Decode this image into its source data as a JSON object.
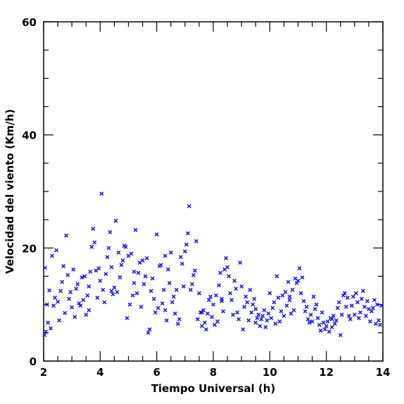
{
  "chart_data": {
    "type": "scatter",
    "title": "",
    "xlabel": "Tiempo Universal (h)",
    "ylabel": "Velocidad del viento (Km/h)",
    "xlim": [
      2,
      14
    ],
    "ylim": [
      0,
      60
    ],
    "x_ticks": [
      2,
      4,
      6,
      8,
      10,
      12,
      14
    ],
    "y_ticks": [
      0,
      20,
      40,
      60
    ],
    "grid": false,
    "legend": "none",
    "marker": "x",
    "color": "#1a1ae6",
    "series": [
      {
        "points": [
          [
            2.03,
            4.6
          ],
          [
            2.05,
            16.5
          ],
          [
            2.08,
            5.2
          ],
          [
            2.12,
            10.0
          ],
          [
            2.15,
            6.8
          ],
          [
            2.2,
            12.5
          ],
          [
            2.25,
            5.8
          ],
          [
            2.3,
            18.6
          ],
          [
            2.35,
            9.8
          ],
          [
            2.4,
            11.2
          ],
          [
            2.45,
            19.6
          ],
          [
            2.5,
            10.5
          ],
          [
            2.55,
            7.2
          ],
          [
            2.6,
            12.4
          ],
          [
            2.65,
            14.0
          ],
          [
            2.7,
            16.8
          ],
          [
            2.75,
            8.5
          ],
          [
            2.8,
            22.2
          ],
          [
            2.85,
            15.2
          ],
          [
            2.9,
            11.0
          ],
          [
            2.95,
            12.2
          ],
          [
            3.0,
            9.5
          ],
          [
            3.05,
            16.2
          ],
          [
            3.1,
            7.8
          ],
          [
            3.15,
            12.8
          ],
          [
            3.2,
            13.6
          ],
          [
            3.25,
            10.2
          ],
          [
            3.3,
            9.8
          ],
          [
            3.35,
            14.8
          ],
          [
            3.4,
            10.8
          ],
          [
            3.45,
            15.0
          ],
          [
            3.5,
            8.2
          ],
          [
            3.55,
            11.6
          ],
          [
            3.6,
            13.2
          ],
          [
            3.65,
            15.8
          ],
          [
            3.7,
            20.2
          ],
          [
            3.75,
            23.4
          ],
          [
            3.8,
            21.0
          ],
          [
            3.85,
            16.0
          ],
          [
            3.9,
            11.2
          ],
          [
            3.95,
            16.4
          ],
          [
            4.0,
            14.2
          ],
          [
            4.05,
            29.6
          ],
          [
            4.1,
            12.6
          ],
          [
            4.15,
            10.4
          ],
          [
            4.2,
            15.4
          ],
          [
            4.25,
            18.4
          ],
          [
            4.3,
            20.0
          ],
          [
            4.35,
            22.8
          ],
          [
            4.4,
            16.6
          ],
          [
            4.45,
            11.8
          ],
          [
            4.5,
            13.0
          ],
          [
            4.55,
            24.8
          ],
          [
            4.6,
            12.2
          ],
          [
            4.65,
            19.2
          ],
          [
            4.7,
            14.8
          ],
          [
            4.75,
            17.0
          ],
          [
            4.8,
            17.8
          ],
          [
            4.85,
            20.4
          ],
          [
            4.9,
            20.2
          ],
          [
            4.95,
            7.6
          ],
          [
            5.0,
            18.6
          ],
          [
            5.05,
            10.0
          ],
          [
            5.1,
            19.0
          ],
          [
            5.15,
            11.6
          ],
          [
            5.2,
            13.8
          ],
          [
            5.25,
            23.2
          ],
          [
            5.3,
            12.0
          ],
          [
            5.35,
            15.6
          ],
          [
            5.4,
            17.4
          ],
          [
            5.45,
            9.6
          ],
          [
            5.5,
            17.8
          ],
          [
            5.55,
            13.6
          ],
          [
            5.6,
            15.0
          ],
          [
            5.65,
            18.2
          ],
          [
            5.7,
            5.0
          ],
          [
            5.75,
            5.6
          ],
          [
            5.8,
            12.4
          ],
          [
            5.85,
            14.6
          ],
          [
            5.9,
            11.0
          ],
          [
            5.95,
            8.6
          ],
          [
            6.0,
            22.4
          ],
          [
            6.05,
            9.4
          ],
          [
            6.1,
            16.8
          ],
          [
            6.15,
            17.0
          ],
          [
            6.2,
            10.2
          ],
          [
            6.25,
            12.6
          ],
          [
            6.3,
            18.6
          ],
          [
            6.35,
            7.2
          ],
          [
            6.4,
            16.2
          ],
          [
            6.45,
            13.8
          ],
          [
            6.5,
            19.2
          ],
          [
            6.55,
            10.4
          ],
          [
            6.6,
            11.4
          ],
          [
            6.65,
            8.4
          ],
          [
            6.7,
            12.6
          ],
          [
            6.75,
            6.6
          ],
          [
            6.8,
            7.4
          ],
          [
            6.85,
            18.4
          ],
          [
            6.9,
            17.2
          ],
          [
            6.95,
            13.2
          ],
          [
            7.0,
            19.4
          ],
          [
            7.05,
            20.6
          ],
          [
            7.1,
            22.6
          ],
          [
            7.15,
            27.4
          ],
          [
            7.2,
            12.6
          ],
          [
            7.25,
            13.6
          ],
          [
            7.3,
            15.2
          ],
          [
            7.35,
            16.0
          ],
          [
            7.4,
            21.2
          ],
          [
            7.45,
            7.4
          ],
          [
            7.5,
            12.0
          ],
          [
            7.55,
            8.6
          ],
          [
            7.6,
            6.2
          ],
          [
            7.65,
            9.0
          ],
          [
            7.7,
            6.8
          ],
          [
            7.75,
            5.6
          ],
          [
            7.8,
            8.4
          ],
          [
            7.85,
            10.8
          ],
          [
            7.9,
            11.4
          ],
          [
            7.95,
            7.8
          ],
          [
            8.0,
            10.0
          ],
          [
            8.05,
            6.4
          ],
          [
            8.1,
            11.6
          ],
          [
            8.15,
            7.0
          ],
          [
            8.2,
            13.4
          ],
          [
            8.25,
            15.6
          ],
          [
            8.3,
            11.0
          ],
          [
            8.35,
            8.8
          ],
          [
            8.4,
            16.2
          ],
          [
            8.45,
            18.2
          ],
          [
            8.5,
            16.6
          ],
          [
            8.55,
            15.0
          ],
          [
            8.6,
            12.0
          ],
          [
            8.65,
            10.8
          ],
          [
            8.7,
            8.2
          ],
          [
            8.75,
            14.2
          ],
          [
            8.8,
            12.8
          ],
          [
            8.85,
            8.6
          ],
          [
            8.9,
            7.4
          ],
          [
            8.95,
            17.4
          ],
          [
            9.0,
            13.2
          ],
          [
            9.05,
            5.6
          ],
          [
            9.1,
            9.6
          ],
          [
            9.15,
            11.4
          ],
          [
            9.2,
            10.4
          ],
          [
            9.25,
            7.2
          ],
          [
            9.3,
            12.6
          ],
          [
            9.35,
            8.6
          ],
          [
            9.4,
            10.0
          ],
          [
            9.45,
            11.0
          ],
          [
            9.5,
            6.8
          ],
          [
            9.55,
            7.6
          ],
          [
            9.6,
            8.2
          ],
          [
            9.65,
            6.2
          ],
          [
            9.7,
            7.4
          ],
          [
            9.75,
            8.0
          ],
          [
            9.8,
            9.0
          ],
          [
            9.85,
            6.0
          ],
          [
            9.9,
            7.2
          ],
          [
            9.95,
            8.4
          ],
          [
            10.0,
            12.0
          ],
          [
            10.05,
            7.6
          ],
          [
            10.1,
            9.4
          ],
          [
            10.15,
            10.4
          ],
          [
            10.2,
            6.6
          ],
          [
            10.25,
            15.0
          ],
          [
            10.3,
            11.2
          ],
          [
            10.35,
            7.0
          ],
          [
            10.4,
            8.8
          ],
          [
            10.45,
            11.6
          ],
          [
            10.5,
            8.0
          ],
          [
            10.55,
            12.2
          ],
          [
            10.6,
            9.8
          ],
          [
            10.65,
            14.0
          ],
          [
            10.7,
            11.4
          ],
          [
            10.75,
            8.4
          ],
          [
            10.8,
            12.6
          ],
          [
            10.85,
            9.0
          ],
          [
            10.9,
            14.6
          ],
          [
            10.95,
            13.8
          ],
          [
            11.0,
            14.2
          ],
          [
            11.05,
            16.4
          ],
          [
            11.1,
            12.0
          ],
          [
            11.15,
            14.8
          ],
          [
            11.2,
            10.6
          ],
          [
            11.25,
            8.8
          ],
          [
            11.3,
            9.6
          ],
          [
            11.35,
            7.4
          ],
          [
            11.4,
            6.8
          ],
          [
            11.45,
            8.2
          ],
          [
            11.5,
            7.0
          ],
          [
            11.55,
            11.4
          ],
          [
            11.6,
            9.2
          ],
          [
            11.65,
            10.0
          ],
          [
            11.7,
            7.6
          ],
          [
            11.75,
            6.4
          ],
          [
            11.8,
            5.4
          ],
          [
            11.85,
            8.6
          ],
          [
            11.9,
            6.8
          ],
          [
            11.95,
            5.6
          ],
          [
            12.0,
            6.2
          ],
          [
            12.05,
            7.0
          ],
          [
            12.1,
            5.2
          ],
          [
            12.15,
            7.6
          ],
          [
            12.2,
            6.0
          ],
          [
            12.25,
            8.0
          ],
          [
            12.3,
            6.6
          ],
          [
            12.35,
            7.2
          ],
          [
            12.4,
            9.4
          ],
          [
            12.45,
            10.4
          ],
          [
            12.5,
            4.6
          ],
          [
            12.55,
            8.2
          ],
          [
            12.6,
            11.6
          ],
          [
            12.65,
            12.0
          ],
          [
            12.7,
            9.6
          ],
          [
            12.75,
            11.2
          ],
          [
            12.8,
            8.0
          ],
          [
            12.85,
            7.4
          ],
          [
            12.9,
            9.8
          ],
          [
            12.95,
            11.4
          ],
          [
            13.0,
            8.2
          ],
          [
            13.05,
            12.0
          ],
          [
            13.1,
            10.4
          ],
          [
            13.15,
            7.6
          ],
          [
            13.2,
            8.6
          ],
          [
            13.25,
            11.0
          ],
          [
            13.3,
            12.4
          ],
          [
            13.35,
            9.6
          ],
          [
            13.4,
            8.0
          ],
          [
            13.45,
            10.6
          ],
          [
            13.5,
            9.2
          ],
          [
            13.55,
            7.0
          ],
          [
            13.6,
            8.8
          ],
          [
            13.65,
            9.4
          ],
          [
            13.7,
            10.8
          ],
          [
            13.75,
            6.6
          ],
          [
            13.8,
            10.0
          ],
          [
            13.85,
            7.2
          ],
          [
            13.9,
            6.4
          ],
          [
            13.95,
            9.8
          ],
          [
            3.6,
            9.0
          ],
          [
            4.4,
            12.4
          ],
          [
            5.2,
            15.8
          ],
          [
            6.3,
            9.0
          ],
          [
            7.6,
            8.6
          ],
          [
            8.3,
            10.6
          ],
          [
            9.5,
            9.2
          ],
          [
            10.7,
            10.8
          ],
          [
            12.2,
            7.4
          ]
        ]
      }
    ]
  }
}
